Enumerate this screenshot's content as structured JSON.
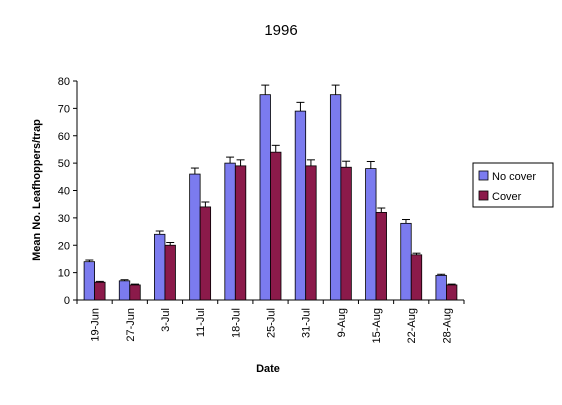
{
  "chart_data": {
    "type": "bar",
    "title": "1996",
    "xlabel": "Date",
    "ylabel": "Mean No. Leafhoppers/trap",
    "ylim": [
      0,
      80
    ],
    "yticks": [
      0,
      10,
      20,
      30,
      40,
      50,
      60,
      70,
      80
    ],
    "grid": false,
    "legend_position": "right",
    "categories": [
      "19-Jun",
      "27-Jun",
      "3-Jul",
      "11-Jul",
      "18-Jul",
      "25-Jul",
      "31-Jul",
      "9-Aug",
      "15-Aug",
      "22-Aug",
      "28-Aug"
    ],
    "series": [
      {
        "name": "No cover",
        "color": "#7b7bef",
        "values": [
          14,
          7,
          24,
          46,
          50,
          75,
          69,
          75,
          48,
          28,
          9
        ],
        "errors": [
          0.6,
          0.4,
          1.2,
          2.2,
          2.2,
          3.5,
          3.2,
          3.5,
          2.6,
          1.4,
          0.4
        ]
      },
      {
        "name": "Cover",
        "color": "#8b1a4a",
        "values": [
          6.5,
          5.5,
          20,
          34,
          49,
          54,
          49,
          48.5,
          32,
          16.5,
          5.5
        ],
        "errors": [
          0.3,
          0.3,
          1.0,
          1.8,
          2.2,
          2.5,
          2.2,
          2.2,
          1.6,
          0.6,
          0.3
        ]
      }
    ]
  }
}
